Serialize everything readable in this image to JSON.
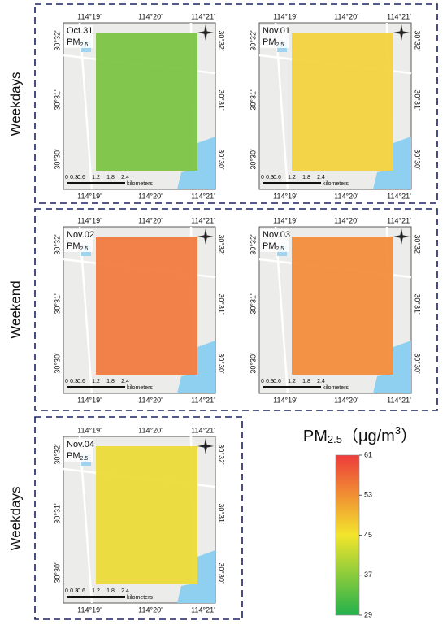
{
  "groups": [
    {
      "label": "Weekdays"
    },
    {
      "label": "Weekend"
    },
    {
      "label": "Weekdays"
    }
  ],
  "panels": [
    {
      "date": "Oct.31",
      "pollutant": "PM",
      "subscript": "2.5",
      "color": "#7cc444"
    },
    {
      "date": "Nov.01",
      "pollutant": "PM",
      "subscript": "2.5",
      "color": "#f3d23e"
    },
    {
      "date": "Nov.02",
      "pollutant": "PM",
      "subscript": "2.5",
      "color": "#f27a40"
    },
    {
      "date": "Nov.03",
      "pollutant": "PM",
      "subscript": "2.5",
      "color": "#f38c3c"
    },
    {
      "date": "Nov.04",
      "pollutant": "PM",
      "subscript": "2.5",
      "color": "#ebdc38"
    }
  ],
  "lon_ticks": [
    "114°19'",
    "114°20'",
    "114°21'"
  ],
  "lat_ticks": [
    "30°32'",
    "30°31'",
    "30°30'"
  ],
  "scale_bar": {
    "ticks": [
      "0",
      "0.3",
      "0.6",
      "1.2",
      "1.8",
      "2.4"
    ],
    "unit": "kilometers"
  },
  "legend": {
    "title": "PM",
    "subscript": "2.5",
    "unit_open": "（μg/m",
    "superscript": "3",
    "unit_close": "）",
    "lim": [
      29,
      61
    ],
    "ticks": [
      61,
      53,
      45,
      37,
      29
    ]
  }
}
